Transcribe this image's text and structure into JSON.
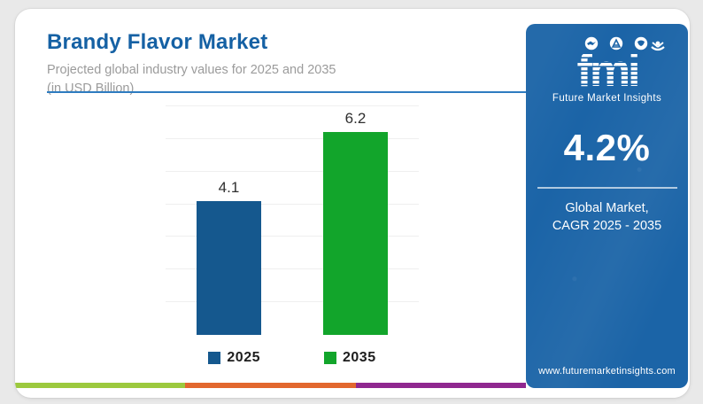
{
  "header": {
    "title": "Brandy Flavor Market",
    "subtitle_line1": "Projected global industry values for 2025 and 2035",
    "subtitle_line2": "(in USD Billion)"
  },
  "chart_data": {
    "type": "bar",
    "categories": [
      "2025",
      "2035"
    ],
    "values": [
      4.1,
      6.2
    ],
    "value_labels": [
      "4.1",
      "6.2"
    ],
    "bar_colors": [
      "#15588e",
      "#12a52b"
    ],
    "title": "Brandy Flavor Market",
    "subtitle": "Projected global industry values for 2025 and 2035 (in USD Billion)",
    "xlabel": "",
    "ylabel": "",
    "ylim": [
      0,
      7
    ],
    "gridline_step": 1,
    "grid": true,
    "legend_position": "bottom"
  },
  "panel": {
    "bg_color": "#1b64a7",
    "logo_text": "fmi",
    "logo_icons": [
      "handshake-icon",
      "globe-stand-icon",
      "globe-icon",
      "person-raised-arms-icon"
    ],
    "logo_subtext": "Future Market Insights",
    "cagr_value": "4.2%",
    "cagr_label_line1": "Global Market,",
    "cagr_label_line2": "CAGR 2025 - 2035",
    "website": "www.futuremarketinsights.com"
  },
  "footer_stripe": {
    "colors": [
      "#9cc93e",
      "#e2672e",
      "#8f278f"
    ]
  },
  "accent_colors": {
    "title_blue": "#1561a4",
    "header_rule_blue": "#2e7cc0",
    "subtitle_gray": "#9b9b9b"
  }
}
